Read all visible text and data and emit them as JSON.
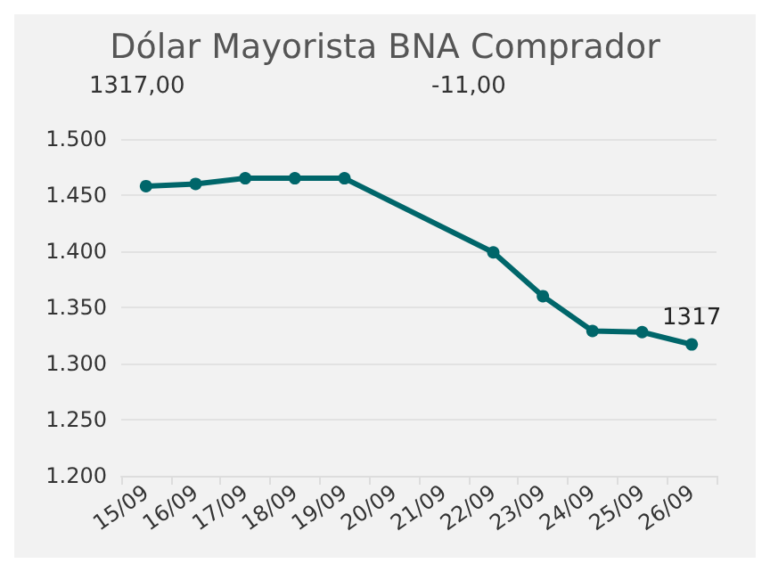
{
  "chart_data": {
    "type": "line",
    "title": "Dólar Mayorista BNA Comprador",
    "annotations": [
      "1317,00",
      "-11,00"
    ],
    "categories": [
      "15/09",
      "16/09",
      "17/09",
      "18/09",
      "19/09",
      "20/09",
      "21/09",
      "22/09",
      "23/09",
      "24/09",
      "25/09",
      "26/09"
    ],
    "series": [
      {
        "color": "#00666a",
        "values": [
          1458,
          1460,
          1465,
          1465,
          1465,
          null,
          null,
          1399,
          1360,
          1329,
          1328,
          1317
        ],
        "value_labels": [
          null,
          null,
          null,
          null,
          null,
          null,
          null,
          null,
          null,
          null,
          null,
          "1317"
        ]
      }
    ],
    "ylim": [
      1200,
      1500
    ],
    "yticks": [
      {
        "value": 1200,
        "label": "1.200"
      },
      {
        "value": 1250,
        "label": "1.250"
      },
      {
        "value": 1300,
        "label": "1.300"
      },
      {
        "value": 1350,
        "label": "1.350"
      },
      {
        "value": 1400,
        "label": "1.400"
      },
      {
        "value": 1450,
        "label": "1.450"
      },
      {
        "value": 1500,
        "label": "1.500"
      }
    ],
    "grid": "y",
    "marker": "circle",
    "line_style": "solid"
  }
}
